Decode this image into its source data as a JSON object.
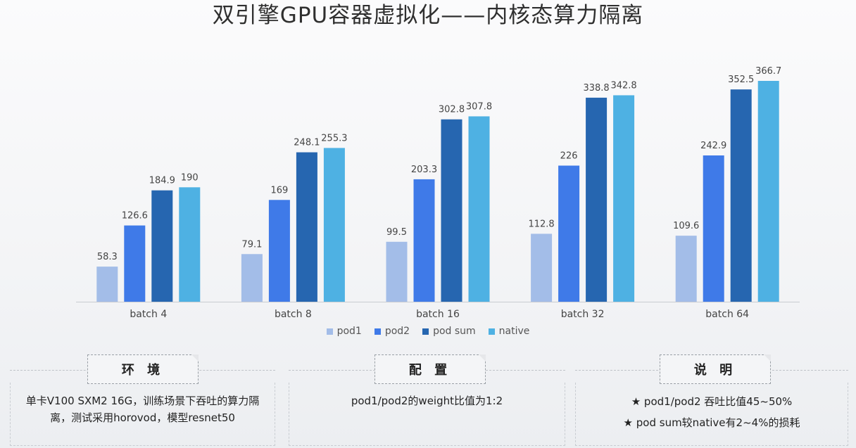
{
  "title": "双引擎GPU容器虚拟化——内核态算力隔离",
  "chart_data": {
    "type": "bar",
    "categories": [
      "batch 4",
      "batch 8",
      "batch 16",
      "batch 32",
      "batch 64"
    ],
    "series": [
      {
        "name": "pod1",
        "color": "#a3bde8",
        "values": [
          58.3,
          79.1,
          99.5,
          112.8,
          109.6
        ]
      },
      {
        "name": "pod2",
        "color": "#3f7ae8",
        "values": [
          126.6,
          169,
          203.3,
          226,
          242.9
        ]
      },
      {
        "name": "pod sum",
        "color": "#2666b0",
        "values": [
          184.9,
          248.1,
          302.8,
          338.8,
          352.5
        ]
      },
      {
        "name": "native",
        "color": "#4eb1e3",
        "values": [
          190,
          255.3,
          307.8,
          342.8,
          366.7
        ]
      }
    ],
    "value_labels": [
      [
        "58.3",
        "79.1",
        "99.5",
        "112.8",
        "109.6"
      ],
      [
        "126.6",
        "169",
        "203.3",
        "226",
        "242.9"
      ],
      [
        "184.9",
        "248.1",
        "302.8",
        "338.8",
        "352.5"
      ],
      [
        "190",
        "255.3",
        "307.8",
        "342.8",
        "366.7"
      ]
    ],
    "ylim": [
      0,
      380
    ],
    "grid": false,
    "legend_position": "bottom-center"
  },
  "panels": [
    {
      "title": "环 境",
      "lines": [
        "单卡V100 SXM2 16G，训练场景下吞吐的算力隔离，测试采用horovod，模型resnet50"
      ]
    },
    {
      "title": "配 置",
      "lines": [
        "pod1/pod2的weight比值为1:2"
      ]
    },
    {
      "title": "说 明",
      "lines": [
        "★ pod1/pod2 吞吐比值45~50%",
        "★ pod sum较native有2~4%的损耗"
      ]
    }
  ]
}
